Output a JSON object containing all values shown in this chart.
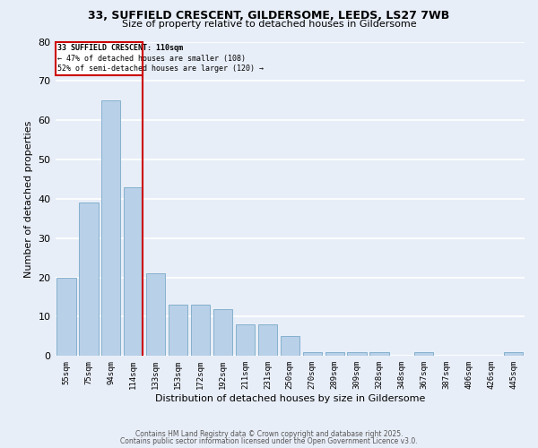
{
  "title1": "33, SUFFIELD CRESCENT, GILDERSOME, LEEDS, LS27 7WB",
  "title2": "Size of property relative to detached houses in Gildersome",
  "xlabel": "Distribution of detached houses by size in Gildersome",
  "ylabel": "Number of detached properties",
  "categories": [
    "55sqm",
    "75sqm",
    "94sqm",
    "114sqm",
    "133sqm",
    "153sqm",
    "172sqm",
    "192sqm",
    "211sqm",
    "231sqm",
    "250sqm",
    "270sqm",
    "289sqm",
    "309sqm",
    "328sqm",
    "348sqm",
    "367sqm",
    "387sqm",
    "406sqm",
    "426sqm",
    "445sqm"
  ],
  "values": [
    20,
    39,
    65,
    43,
    21,
    13,
    13,
    12,
    8,
    8,
    5,
    1,
    1,
    1,
    1,
    0,
    1,
    0,
    0,
    0,
    1
  ],
  "bar_color": "#b8d0e8",
  "bar_edge_color": "#7aaac8",
  "vline_color": "#cc0000",
  "annotation_title": "33 SUFFIELD CRESCENT: 110sqm",
  "annotation_line1": "← 47% of detached houses are smaller (108)",
  "annotation_line2": "52% of semi-detached houses are larger (120) →",
  "annotation_box_color": "#cc0000",
  "ylim": [
    0,
    80
  ],
  "yticks": [
    0,
    10,
    20,
    30,
    40,
    50,
    60,
    70,
    80
  ],
  "background_color": "#e8eef8",
  "grid_color": "#ffffff",
  "footer1": "Contains HM Land Registry data © Crown copyright and database right 2025.",
  "footer2": "Contains public sector information licensed under the Open Government Licence v3.0."
}
